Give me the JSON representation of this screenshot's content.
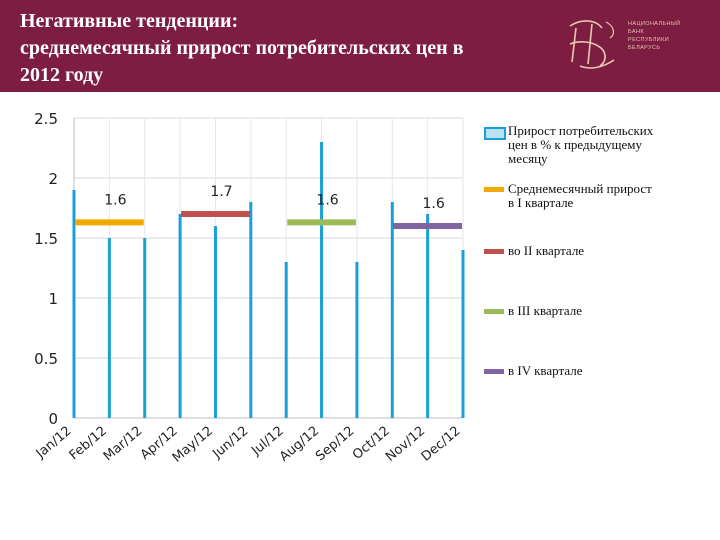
{
  "header": {
    "title_lines": [
      "Негативные тенденции:",
      "среднемесячный прирост потребительских цен в",
      "2012 году"
    ],
    "logo_lines": [
      "НАЦИОНАЛЬНЫЙ",
      "БАНК",
      "РЕСПУБЛИКИ",
      "БЕЛАРУСЬ"
    ],
    "brand_color": "#7d1d41"
  },
  "chart_data": {
    "type": "bar",
    "categories": [
      "Jan/12",
      "Feb/12",
      "Mar/12",
      "Apr/12",
      "May/12",
      "Jun/12",
      "Jul/12",
      "Aug/12",
      "Sep/12",
      "Oct/12",
      "Nov/12",
      "Dec/12"
    ],
    "series": [
      {
        "name": "Прирост потребительских цен в % к предыдущему месяцу",
        "type": "bar",
        "color": "#1b9fd6",
        "values": [
          1.9,
          1.5,
          1.5,
          1.7,
          1.6,
          1.8,
          1.3,
          2.3,
          1.3,
          1.8,
          1.7,
          1.4
        ]
      },
      {
        "name": "Среднемесячный прирост в I квартале",
        "type": "quarter-line",
        "color": "#f2a900",
        "months": [
          1,
          3
        ],
        "value": 1.63,
        "label": "1.6"
      },
      {
        "name": "во II квартале",
        "type": "quarter-line",
        "color": "#c0504d",
        "months": [
          4,
          6
        ],
        "value": 1.7,
        "label": "1.7"
      },
      {
        "name": "в III квартале",
        "type": "quarter-line",
        "color": "#9bbb59",
        "months": [
          7,
          9
        ],
        "value": 1.63,
        "label": "1.6"
      },
      {
        "name": "в IV квартале",
        "type": "quarter-line",
        "color": "#8064a2",
        "months": [
          10,
          12
        ],
        "value": 1.6,
        "label": "1.6"
      }
    ],
    "ylim": [
      0,
      2.5
    ],
    "yticks": [
      "0",
      "0.5",
      "1",
      "1.5",
      "2",
      "2.5"
    ],
    "grid": true,
    "legend_position": "right",
    "xlabel": "",
    "ylabel": ""
  },
  "legend": [
    {
      "lines": [
        "Прирост потребительских",
        "цен в % к предыдущему",
        "месяцу"
      ],
      "color": "#1b9fd6",
      "swatch": "box"
    },
    {
      "lines": [
        "Среднемесячный прирост",
        "в I квартале"
      ],
      "color": "#f2a900",
      "swatch": "line"
    },
    {
      "lines": [
        "во II квартале"
      ],
      "color": "#c0504d",
      "swatch": "line"
    },
    {
      "lines": [
        "в III квартале"
      ],
      "color": "#9bbb59",
      "swatch": "line"
    },
    {
      "lines": [
        "в IV квартале"
      ],
      "color": "#8064a2",
      "swatch": "line"
    }
  ]
}
